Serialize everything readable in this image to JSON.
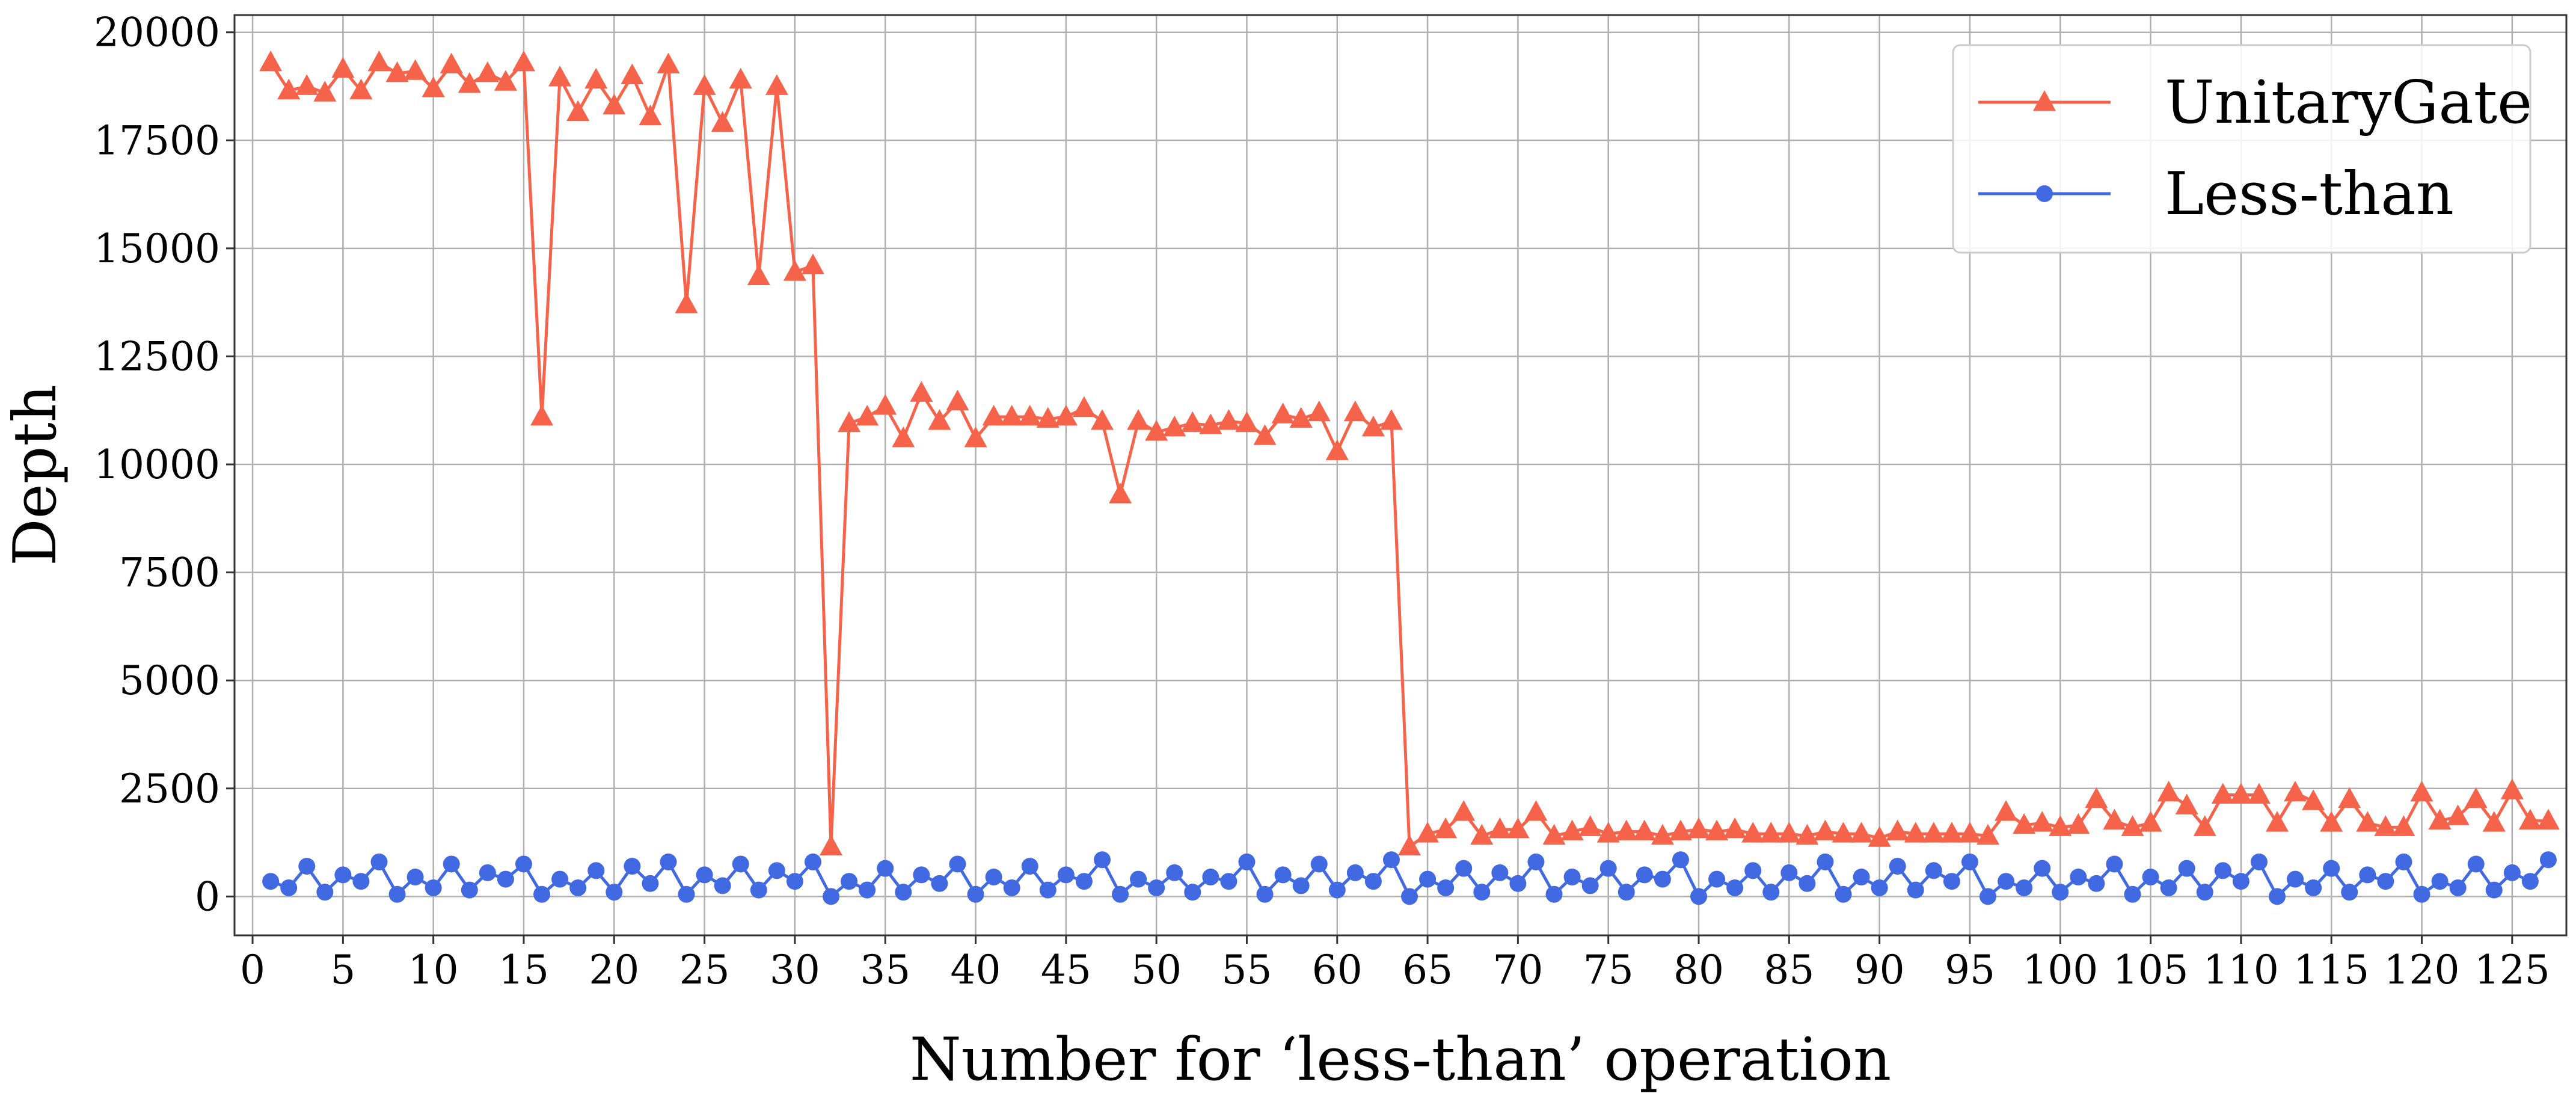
{
  "chart_data": {
    "type": "line",
    "title": "",
    "xlabel": "Number for ‘less-than’ operation",
    "ylabel": "Depth",
    "xlim": [
      -1,
      128
    ],
    "ylim": [
      -900,
      20400
    ],
    "xticks": [
      0,
      5,
      10,
      15,
      20,
      25,
      30,
      35,
      40,
      45,
      50,
      55,
      60,
      65,
      70,
      75,
      80,
      85,
      90,
      95,
      100,
      105,
      110,
      115,
      120,
      125
    ],
    "yticks": [
      0,
      2500,
      5000,
      7500,
      10000,
      12500,
      15000,
      17500,
      20000
    ],
    "grid": true,
    "legend_position": "upper right",
    "x": [
      1,
      2,
      3,
      4,
      5,
      6,
      7,
      8,
      9,
      10,
      11,
      12,
      13,
      14,
      15,
      16,
      17,
      18,
      19,
      20,
      21,
      22,
      23,
      24,
      25,
      26,
      27,
      28,
      29,
      30,
      31,
      32,
      33,
      34,
      35,
      36,
      37,
      38,
      39,
      40,
      41,
      42,
      43,
      44,
      45,
      46,
      47,
      48,
      49,
      50,
      51,
      52,
      53,
      54,
      55,
      56,
      57,
      58,
      59,
      60,
      61,
      62,
      63,
      64,
      65,
      66,
      67,
      68,
      69,
      70,
      71,
      72,
      73,
      74,
      75,
      76,
      77,
      78,
      79,
      80,
      81,
      82,
      83,
      84,
      85,
      86,
      87,
      88,
      89,
      90,
      91,
      92,
      93,
      94,
      95,
      96,
      97,
      98,
      99,
      100,
      101,
      102,
      103,
      104,
      105,
      106,
      107,
      108,
      109,
      110,
      111,
      112,
      113,
      114,
      115,
      116,
      117,
      118,
      119,
      120,
      121,
      122,
      123,
      124,
      125,
      126,
      127
    ],
    "series": [
      {
        "name": "UnitaryGate",
        "color": "#f4634a",
        "marker": "triangle",
        "values": [
          19300,
          18650,
          18750,
          18600,
          19150,
          18650,
          19300,
          19050,
          19100,
          18700,
          19250,
          18800,
          19050,
          18850,
          19300,
          11100,
          18950,
          18150,
          18900,
          18300,
          19000,
          18050,
          19250,
          13700,
          18750,
          17900,
          18900,
          14350,
          18750,
          14450,
          14600,
          1150,
          10950,
          11100,
          11350,
          10600,
          11650,
          11000,
          11450,
          10600,
          11100,
          11100,
          11100,
          11050,
          11100,
          11300,
          11000,
          9300,
          11000,
          10750,
          10850,
          10950,
          10900,
          11000,
          10950,
          10650,
          11150,
          11050,
          11200,
          10300,
          11200,
          10850,
          11000,
          1150,
          1450,
          1550,
          1950,
          1400,
          1550,
          1550,
          1950,
          1400,
          1500,
          1600,
          1450,
          1500,
          1500,
          1400,
          1500,
          1550,
          1500,
          1550,
          1450,
          1450,
          1450,
          1400,
          1500,
          1450,
          1450,
          1350,
          1500,
          1450,
          1450,
          1450,
          1450,
          1400,
          1950,
          1650,
          1700,
          1600,
          1650,
          2250,
          1750,
          1600,
          1700,
          2400,
          2100,
          1600,
          2350,
          2350,
          2350,
          1700,
          2400,
          2200,
          1700,
          2250,
          1700,
          1600,
          1600,
          2400,
          1750,
          1850,
          2250,
          1700,
          2450,
          1750,
          1750
        ]
      },
      {
        "name": "Less-than",
        "color": "#4169e1",
        "marker": "circle",
        "values": [
          350,
          200,
          700,
          100,
          500,
          350,
          800,
          50,
          450,
          200,
          750,
          150,
          550,
          400,
          750,
          50,
          400,
          200,
          600,
          100,
          700,
          300,
          800,
          50,
          500,
          250,
          750,
          150,
          600,
          350,
          800,
          0,
          350,
          150,
          650,
          100,
          500,
          300,
          750,
          50,
          450,
          200,
          700,
          150,
          500,
          350,
          850,
          50,
          400,
          200,
          550,
          100,
          450,
          350,
          800,
          50,
          500,
          250,
          750,
          150,
          550,
          350,
          850,
          0,
          400,
          200,
          650,
          100,
          550,
          300,
          800,
          50,
          450,
          250,
          650,
          100,
          500,
          400,
          850,
          0,
          400,
          200,
          600,
          100,
          550,
          300,
          800,
          50,
          450,
          200,
          700,
          150,
          600,
          350,
          800,
          0,
          350,
          200,
          650,
          100,
          450,
          300,
          750,
          50,
          450,
          200,
          650,
          100,
          600,
          350,
          800,
          0,
          400,
          200,
          650,
          100,
          500,
          350,
          800,
          50,
          350,
          200,
          750,
          150,
          550,
          350,
          850
        ]
      }
    ]
  }
}
